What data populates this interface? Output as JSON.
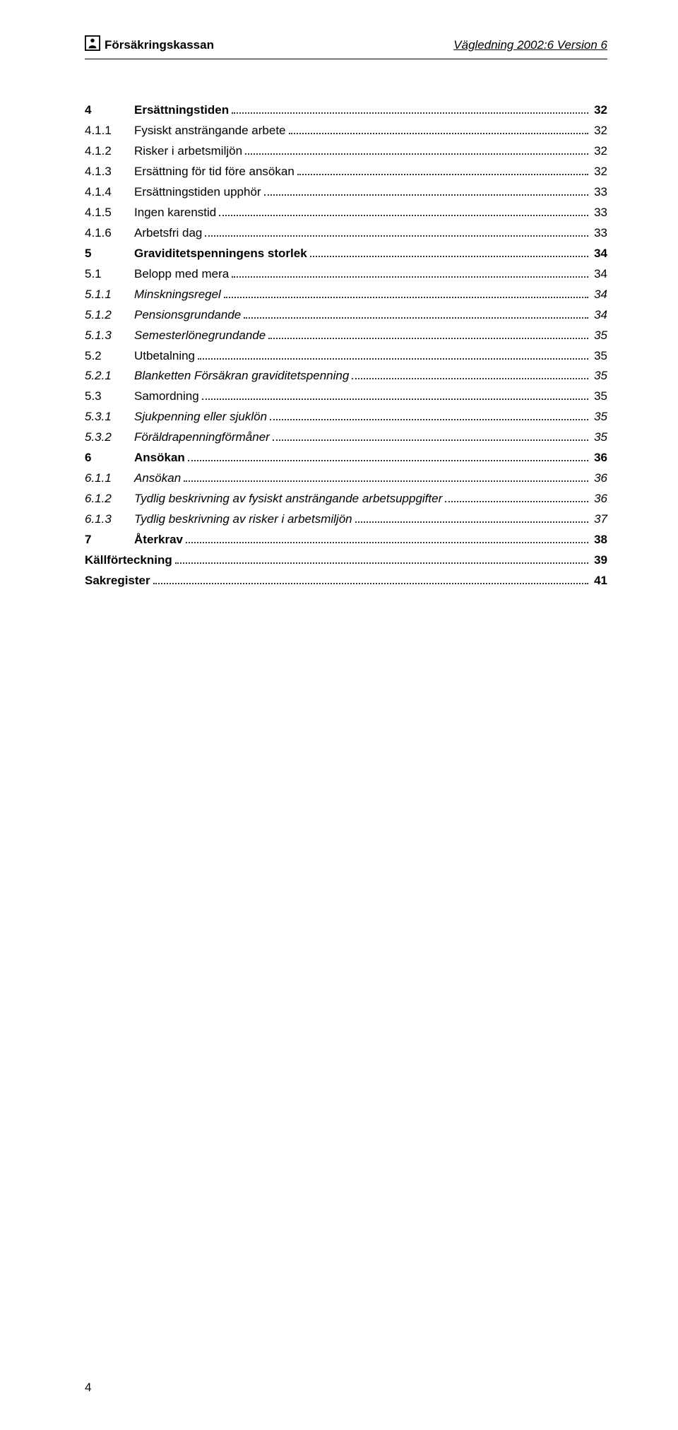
{
  "header": {
    "logo_text": "Försäkringskassan",
    "right_text": "Vägledning 2002:6 Version 6"
  },
  "toc": [
    {
      "level": 1,
      "num": "4",
      "title": "Ersättningstiden",
      "page": "32"
    },
    {
      "level": 2,
      "num": "4.1.1",
      "title": "Fysiskt ansträngande arbete",
      "page": "32"
    },
    {
      "level": 2,
      "num": "4.1.2",
      "title": "Risker i arbetsmiljön",
      "page": "32"
    },
    {
      "level": 2,
      "num": "4.1.3",
      "title": "Ersättning för tid före ansökan",
      "page": "32"
    },
    {
      "level": 2,
      "num": "4.1.4",
      "title": "Ersättningstiden upphör",
      "page": "33"
    },
    {
      "level": 2,
      "num": "4.1.5",
      "title": "Ingen karenstid",
      "page": "33"
    },
    {
      "level": 2,
      "num": "4.1.6",
      "title": "Arbetsfri dag",
      "page": "33"
    },
    {
      "level": 1,
      "num": "5",
      "title": "Graviditetspenningens storlek",
      "page": "34"
    },
    {
      "level": 2,
      "num": "5.1",
      "title": "Belopp med mera",
      "page": "34"
    },
    {
      "level": 3,
      "num": "5.1.1",
      "title": "Minskningsregel",
      "page": "34"
    },
    {
      "level": 3,
      "num": "5.1.2",
      "title": "Pensionsgrundande",
      "page": "34"
    },
    {
      "level": 3,
      "num": "5.1.3",
      "title": "Semesterlönegrundande",
      "page": "35"
    },
    {
      "level": 2,
      "num": "5.2",
      "title": "Utbetalning",
      "page": "35"
    },
    {
      "level": 3,
      "num": "5.2.1",
      "title": "Blanketten Försäkran graviditetspenning",
      "page": "35"
    },
    {
      "level": 2,
      "num": "5.3",
      "title": "Samordning",
      "page": "35"
    },
    {
      "level": 3,
      "num": "5.3.1",
      "title": "Sjukpenning eller sjuklön",
      "page": "35"
    },
    {
      "level": 3,
      "num": "5.3.2",
      "title": "Föräldrapenningförmåner",
      "page": "35"
    },
    {
      "level": 1,
      "num": "6",
      "title": "Ansökan",
      "page": "36"
    },
    {
      "level": 3,
      "num": "6.1.1",
      "title": "Ansökan",
      "page": "36"
    },
    {
      "level": 3,
      "num": "6.1.2",
      "title": "Tydlig beskrivning av fysiskt ansträngande arbetsuppgifter",
      "page": "36"
    },
    {
      "level": 3,
      "num": "6.1.3",
      "title": "Tydlig beskrivning av risker i arbetsmiljön",
      "page": "37"
    },
    {
      "level": 1,
      "num": "7",
      "title": "Återkrav",
      "page": "38"
    },
    {
      "level": 0,
      "num": "",
      "title": "Källförteckning",
      "page": "39"
    },
    {
      "level": 0,
      "num": "",
      "title": "Sakregister",
      "page": "41"
    }
  ],
  "footer": {
    "page_number": "4"
  }
}
